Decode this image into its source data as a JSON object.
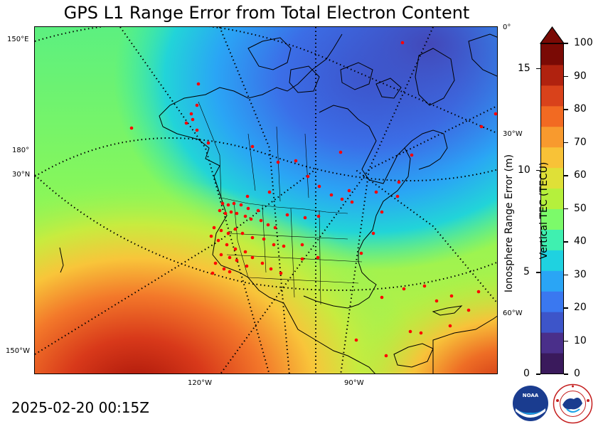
{
  "title": "GPS L1 Range Error from Total Electron Content",
  "timestamp": "2025-02-20 00:15Z",
  "map": {
    "lon_labels_left": [
      "150°E",
      "180°",
      "30°N",
      "150°W"
    ],
    "lon_labels_bottom": [
      "120°W",
      "90°W"
    ],
    "lon_labels_right": [
      "0°",
      "30°W",
      "60°W"
    ]
  },
  "colorbar": {
    "right_label": "Vertical TEC (TECU)",
    "left_label": "Ionosphere Range Error (m)",
    "tecu_ticks": [
      "100",
      "90",
      "80",
      "70",
      "60",
      "50",
      "40",
      "30",
      "20",
      "10",
      "0"
    ],
    "meter_ticks": [
      "15",
      "10",
      "5",
      "0"
    ],
    "colors": [
      "#3a1a5c",
      "#4a2f8a",
      "#3d55c9",
      "#3a78f0",
      "#2aa5f5",
      "#1fd2e0",
      "#3ff0b0",
      "#7cfa6a",
      "#b5f03c",
      "#dfe037",
      "#f8c237",
      "#f89a2e",
      "#f26a22",
      "#d9421b",
      "#b0220f",
      "#7a0a05"
    ],
    "extend_color": "#7a0a05"
  },
  "logos": {
    "noaa": "NOAA",
    "nws": "NATIONAL WEATHER SERVICE"
  },
  "station_color": "#ff0000"
}
